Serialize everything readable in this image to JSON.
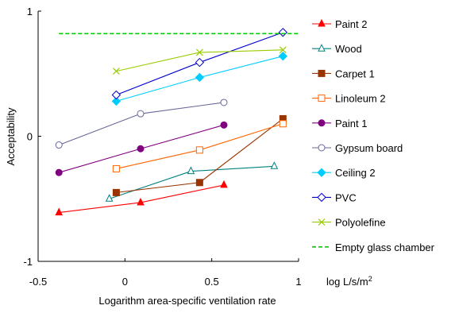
{
  "chart_data": {
    "type": "line",
    "xlabel": "Logarithm area-specific ventilation rate",
    "xunit": "log L/s/m",
    "xunit_sup": "2",
    "ylabel": "Acceptability",
    "xlim": [
      -0.5,
      1.0
    ],
    "ylim": [
      -1.0,
      1.0
    ],
    "x_ticks": [
      -0.5,
      0,
      0.5,
      1
    ],
    "x_tick_labels": [
      "-0.5",
      "0",
      "0.5",
      "1"
    ],
    "y_ticks": [
      -1,
      0,
      1
    ],
    "y_tick_labels": [
      "-1",
      "0",
      "1"
    ],
    "grid": false,
    "legend_position": "right",
    "series": [
      {
        "name": "Paint 2",
        "color": "#ff0000",
        "marker": "triangle",
        "filled": true,
        "x": [
          -0.38,
          0.09,
          0.57
        ],
        "y": [
          -0.61,
          -0.53,
          -0.39
        ]
      },
      {
        "name": "Wood",
        "color": "#008080",
        "marker": "triangle",
        "filled": false,
        "x": [
          -0.09,
          0.38,
          0.86
        ],
        "y": [
          -0.5,
          -0.28,
          -0.24
        ]
      },
      {
        "name": "Carpet 1",
        "color": "#993300",
        "marker": "square",
        "filled": true,
        "x": [
          -0.05,
          0.43,
          0.91
        ],
        "y": [
          -0.45,
          -0.37,
          0.14
        ]
      },
      {
        "name": "Linoleum 2",
        "color": "#ff6600",
        "marker": "square",
        "filled": false,
        "x": [
          -0.05,
          0.43,
          0.91
        ],
        "y": [
          -0.26,
          -0.11,
          0.1
        ]
      },
      {
        "name": "Paint 1",
        "color": "#800080",
        "marker": "circle",
        "filled": true,
        "x": [
          -0.38,
          0.09,
          0.57
        ],
        "y": [
          -0.29,
          -0.1,
          0.09
        ]
      },
      {
        "name": "Gypsum board",
        "color": "#666699",
        "marker": "circle",
        "filled": false,
        "x": [
          -0.38,
          0.09,
          0.57
        ],
        "y": [
          -0.07,
          0.18,
          0.27
        ]
      },
      {
        "name": "Ceiling 2",
        "color": "#00ccff",
        "marker": "diamond",
        "filled": true,
        "x": [
          -0.05,
          0.43,
          0.91
        ],
        "y": [
          0.28,
          0.47,
          0.64
        ]
      },
      {
        "name": "PVC",
        "color": "#0000cc",
        "marker": "diamond",
        "filled": false,
        "x": [
          -0.05,
          0.43,
          0.91
        ],
        "y": [
          0.33,
          0.59,
          0.83
        ]
      },
      {
        "name": "Polyolefine",
        "color": "#99cc00",
        "marker": "x",
        "filled": false,
        "x": [
          -0.05,
          0.43,
          0.91
        ],
        "y": [
          0.52,
          0.67,
          0.69
        ]
      }
    ],
    "reference_line": {
      "name": "Empty glass chamber",
      "color": "#00cc00",
      "style": "dashed",
      "y": 0.82,
      "x": [
        -0.38,
        0.91
      ]
    }
  }
}
